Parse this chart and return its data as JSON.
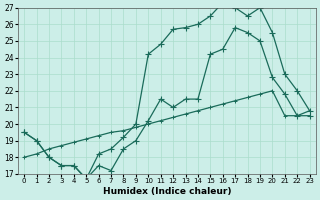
{
  "xlabel": "Humidex (Indice chaleur)",
  "ylabel": "",
  "xlim": [
    -0.5,
    23.5
  ],
  "ylim": [
    17,
    27
  ],
  "yticks": [
    17,
    18,
    19,
    20,
    21,
    22,
    23,
    24,
    25,
    26,
    27
  ],
  "xticks": [
    0,
    1,
    2,
    3,
    4,
    5,
    6,
    7,
    8,
    9,
    10,
    11,
    12,
    13,
    14,
    15,
    16,
    17,
    18,
    19,
    20,
    21,
    22,
    23
  ],
  "bg_color": "#cceee8",
  "grid_color": "#aaddcc",
  "line_color": "#1a6b5a",
  "line1_x": [
    0,
    1,
    2,
    3,
    4,
    5,
    6,
    7,
    8,
    9,
    10,
    11,
    12,
    13,
    14,
    15,
    16,
    17,
    18,
    19,
    20,
    21,
    22,
    23
  ],
  "line1_y": [
    19.5,
    19.0,
    18.0,
    17.5,
    17.5,
    16.7,
    17.5,
    17.2,
    18.5,
    19.0,
    20.2,
    21.5,
    21.0,
    21.5,
    21.5,
    24.2,
    24.5,
    25.8,
    25.5,
    25.0,
    22.8,
    21.8,
    20.5,
    20.5
  ],
  "line2_x": [
    0,
    1,
    2,
    3,
    4,
    5,
    6,
    7,
    8,
    9,
    10,
    11,
    12,
    13,
    14,
    15,
    16,
    17,
    18,
    19,
    20,
    21,
    22,
    23
  ],
  "line2_y": [
    19.5,
    19.0,
    18.0,
    17.5,
    17.5,
    16.7,
    18.2,
    18.5,
    19.2,
    20.0,
    24.2,
    24.8,
    25.7,
    25.8,
    26.0,
    26.5,
    27.3,
    27.0,
    26.5,
    27.0,
    25.5,
    23.0,
    22.0,
    20.8
  ],
  "line3_x": [
    0,
    1,
    2,
    3,
    4,
    5,
    6,
    7,
    8,
    9,
    10,
    11,
    12,
    13,
    14,
    15,
    16,
    17,
    18,
    19,
    20,
    21,
    22,
    23
  ],
  "line3_y": [
    18.0,
    18.2,
    18.5,
    18.7,
    18.9,
    19.1,
    19.3,
    19.5,
    19.6,
    19.8,
    20.0,
    20.2,
    20.4,
    20.6,
    20.8,
    21.0,
    21.2,
    21.4,
    21.6,
    21.8,
    22.0,
    20.5,
    20.5,
    20.8
  ]
}
